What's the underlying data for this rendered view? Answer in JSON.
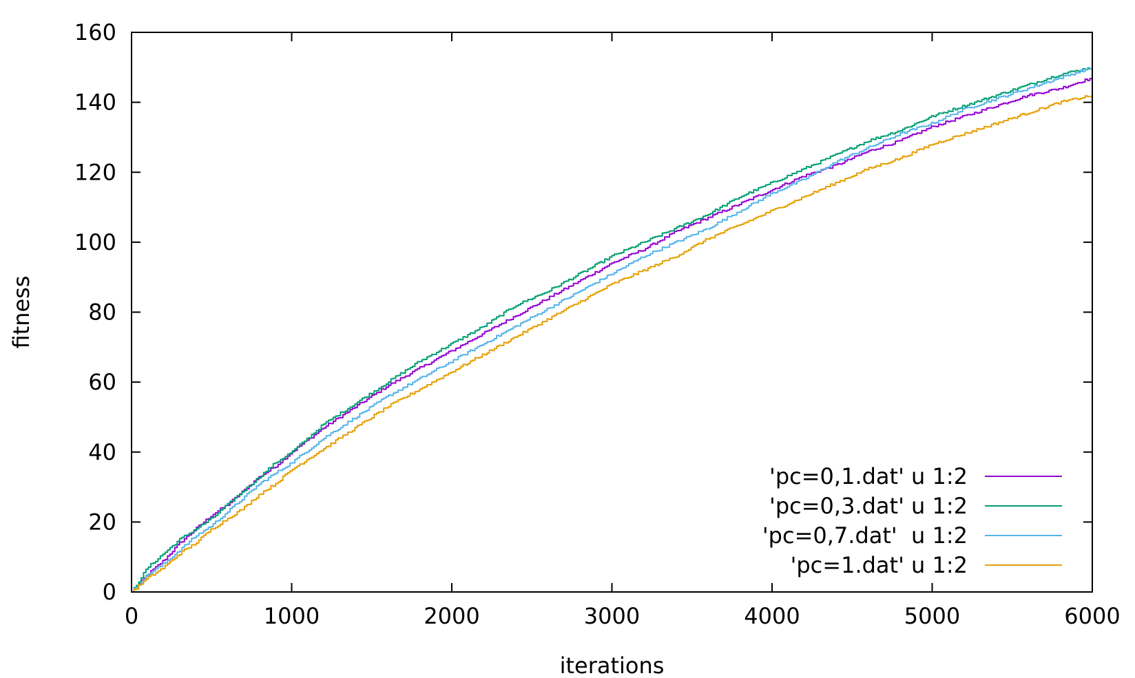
{
  "chart_data": {
    "type": "line",
    "title": "",
    "xlabel": "iterations",
    "ylabel": "fitness",
    "xlim": [
      0,
      6000
    ],
    "ylim": [
      0,
      160
    ],
    "xticks": [
      0,
      1000,
      2000,
      3000,
      4000,
      5000,
      6000
    ],
    "yticks": [
      0,
      20,
      40,
      60,
      80,
      100,
      120,
      140,
      160
    ],
    "grid": false,
    "legend_position": "bottom-right",
    "series": [
      {
        "name": "'pc=0,1.dat' u 1:2",
        "color": "#9400d3",
        "x": [
          0,
          100,
          200,
          300,
          400,
          500,
          600,
          700,
          800,
          900,
          1000,
          1200,
          1400,
          1600,
          1800,
          2000,
          2200,
          2400,
          2600,
          2800,
          3000,
          3200,
          3400,
          3600,
          3800,
          4000,
          4200,
          4400,
          4600,
          4800,
          5000,
          5200,
          5400,
          5600,
          5800,
          6000
        ],
        "y": [
          0,
          5,
          9,
          14,
          18,
          22,
          25,
          29,
          33,
          36,
          40,
          47,
          53,
          59,
          64,
          69,
          74,
          79,
          84,
          89,
          94,
          98,
          103,
          107,
          111,
          115,
          119,
          122,
          126,
          129,
          133,
          136,
          139,
          142,
          144,
          147
        ]
      },
      {
        "name": "'pc=0,3.dat' u 1:2",
        "color": "#009e73",
        "x": [
          0,
          100,
          200,
          300,
          400,
          500,
          600,
          700,
          800,
          900,
          1000,
          1200,
          1400,
          1600,
          1800,
          2000,
          2200,
          2400,
          2600,
          2800,
          3000,
          3200,
          3400,
          3600,
          3800,
          4000,
          4200,
          4400,
          4600,
          4800,
          5000,
          5200,
          5400,
          5600,
          5800,
          6000
        ],
        "y": [
          0,
          7,
          11,
          15,
          18,
          21,
          25,
          29,
          33,
          37,
          40,
          48,
          54,
          60,
          66,
          71,
          76,
          82,
          86,
          91,
          96,
          100,
          104,
          108,
          113,
          117,
          121,
          125,
          129,
          132,
          136,
          139,
          142,
          145,
          148,
          150
        ]
      },
      {
        "name": "'pc=0,7.dat'  u 1:2",
        "color": "#56b4e9",
        "x": [
          0,
          100,
          200,
          300,
          400,
          500,
          600,
          700,
          800,
          900,
          1000,
          1200,
          1400,
          1600,
          1800,
          2000,
          2200,
          2400,
          2600,
          2800,
          3000,
          3200,
          3400,
          3600,
          3800,
          4000,
          4200,
          4400,
          4600,
          4800,
          5000,
          5200,
          5400,
          5600,
          5800,
          6000
        ],
        "y": [
          0,
          5,
          8,
          12,
          16,
          19,
          23,
          27,
          31,
          34,
          37,
          44,
          50,
          56,
          61,
          66,
          71,
          76,
          81,
          86,
          91,
          96,
          100,
          104,
          109,
          114,
          118,
          123,
          127,
          131,
          134,
          138,
          141,
          144,
          147,
          150
        ]
      },
      {
        "name": "'pc=1.dat' u 1:2",
        "color": "#e69f00",
        "x": [
          0,
          100,
          200,
          300,
          400,
          500,
          600,
          700,
          800,
          900,
          1000,
          1200,
          1400,
          1600,
          1800,
          2000,
          2200,
          2400,
          2600,
          2800,
          3000,
          3200,
          3400,
          3600,
          3800,
          4000,
          4200,
          4400,
          4600,
          4800,
          5000,
          5200,
          5400,
          5600,
          5800,
          6000
        ],
        "y": [
          0,
          4,
          7,
          11,
          14,
          18,
          21,
          24,
          28,
          31,
          35,
          41,
          47,
          53,
          58,
          63,
          68,
          73,
          78,
          83,
          88,
          92,
          96,
          101,
          105,
          109,
          113,
          117,
          121,
          124,
          128,
          131,
          134,
          137,
          140,
          142
        ]
      }
    ]
  }
}
